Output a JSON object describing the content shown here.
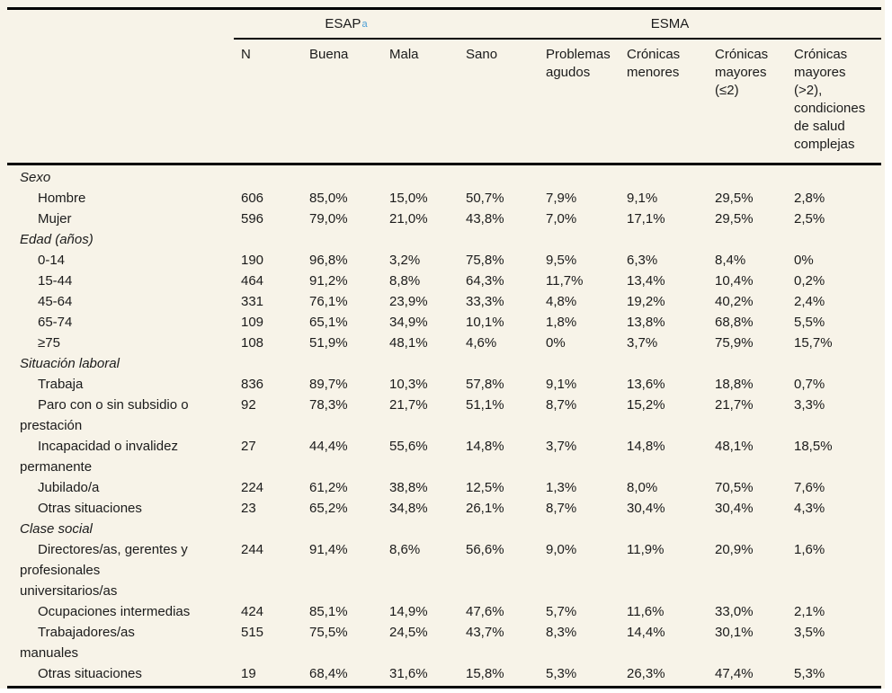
{
  "colors": {
    "page_background": "#ffffff",
    "table_background": "#f7f3e8",
    "rule": "#000000",
    "text": "#1b1b1b",
    "superscript_blue": "#4c9fd6"
  },
  "table": {
    "group_headers": [
      {
        "label": "ESAP",
        "superscript": "a"
      },
      {
        "label": "ESMA"
      }
    ],
    "columns": [
      {
        "lines": [
          "N"
        ]
      },
      {
        "lines": [
          "Buena"
        ]
      },
      {
        "lines": [
          "Mala"
        ]
      },
      {
        "lines": [
          "Sano"
        ]
      },
      {
        "lines": [
          "Problemas",
          "agudos"
        ]
      },
      {
        "lines": [
          "Crónicas",
          "menores"
        ]
      },
      {
        "lines": [
          "Crónicas",
          "mayores",
          "(≤2)"
        ]
      },
      {
        "lines": [
          "Crónicas",
          "mayores",
          "(>2),",
          "condiciones",
          "de salud",
          "complejas"
        ]
      }
    ],
    "sections": [
      {
        "title": "Sexo",
        "rows": [
          {
            "label_lines": [
              "Hombre"
            ],
            "values": [
              "606",
              "85,0%",
              "15,0%",
              "50,7%",
              "7,9%",
              "9,1%",
              "29,5%",
              "2,8%"
            ]
          },
          {
            "label_lines": [
              "Mujer"
            ],
            "values": [
              "596",
              "79,0%",
              "21,0%",
              "43,8%",
              "7,0%",
              "17,1%",
              "29,5%",
              "2,5%"
            ]
          }
        ]
      },
      {
        "title": "Edad (años)",
        "rows": [
          {
            "label_lines": [
              "0-14"
            ],
            "values": [
              "190",
              "96,8%",
              "3,2%",
              "75,8%",
              "9,5%",
              "6,3%",
              "8,4%",
              "0%"
            ]
          },
          {
            "label_lines": [
              "15-44"
            ],
            "values": [
              "464",
              "91,2%",
              "8,8%",
              "64,3%",
              "11,7%",
              "13,4%",
              "10,4%",
              "0,2%"
            ]
          },
          {
            "label_lines": [
              "45-64"
            ],
            "values": [
              "331",
              "76,1%",
              "23,9%",
              "33,3%",
              "4,8%",
              "19,2%",
              "40,2%",
              "2,4%"
            ]
          },
          {
            "label_lines": [
              "65-74"
            ],
            "values": [
              "109",
              "65,1%",
              "34,9%",
              "10,1%",
              "1,8%",
              "13,8%",
              "68,8%",
              "5,5%"
            ]
          },
          {
            "label_lines": [
              "≥75"
            ],
            "values": [
              "108",
              "51,9%",
              "48,1%",
              "4,6%",
              "0%",
              "3,7%",
              "75,9%",
              "15,7%"
            ]
          }
        ]
      },
      {
        "title": "Situación laboral",
        "rows": [
          {
            "label_lines": [
              "Trabaja"
            ],
            "values": [
              "836",
              "89,7%",
              "10,3%",
              "57,8%",
              "9,1%",
              "13,6%",
              "18,8%",
              "0,7%"
            ]
          },
          {
            "label_lines": [
              "Paro con o sin subsidio o",
              "prestación"
            ],
            "values": [
              "92",
              "78,3%",
              "21,7%",
              "51,1%",
              "8,7%",
              "15,2%",
              "21,7%",
              "3,3%"
            ]
          },
          {
            "label_lines": [
              "Incapacidad o invalidez",
              "permanente"
            ],
            "values": [
              "27",
              "44,4%",
              "55,6%",
              "14,8%",
              "3,7%",
              "14,8%",
              "48,1%",
              "18,5%"
            ]
          },
          {
            "label_lines": [
              "Jubilado/a"
            ],
            "values": [
              "224",
              "61,2%",
              "38,8%",
              "12,5%",
              "1,3%",
              "8,0%",
              "70,5%",
              "7,6%"
            ]
          },
          {
            "label_lines": [
              "Otras situaciones"
            ],
            "values": [
              "23",
              "65,2%",
              "34,8%",
              "26,1%",
              "8,7%",
              "30,4%",
              "30,4%",
              "4,3%"
            ]
          }
        ]
      },
      {
        "title": "Clase social",
        "rows": [
          {
            "label_lines": [
              "Directores/as, gerentes y",
              "profesionales",
              "universitarios/as"
            ],
            "values": [
              "244",
              "91,4%",
              "8,6%",
              "56,6%",
              "9,0%",
              "11,9%",
              "20,9%",
              "1,6%"
            ]
          },
          {
            "label_lines": [
              "Ocupaciones intermedias"
            ],
            "values": [
              "424",
              "85,1%",
              "14,9%",
              "47,6%",
              "5,7%",
              "11,6%",
              "33,0%",
              "2,1%"
            ]
          },
          {
            "label_lines": [
              "Trabajadores/as",
              "manuales"
            ],
            "values": [
              "515",
              "75,5%",
              "24,5%",
              "43,7%",
              "8,3%",
              "14,4%",
              "30,1%",
              "3,5%"
            ]
          },
          {
            "label_lines": [
              "Otras situaciones"
            ],
            "values": [
              "19",
              "68,4%",
              "31,6%",
              "15,8%",
              "5,3%",
              "26,3%",
              "47,4%",
              "5,3%"
            ]
          }
        ]
      }
    ]
  }
}
